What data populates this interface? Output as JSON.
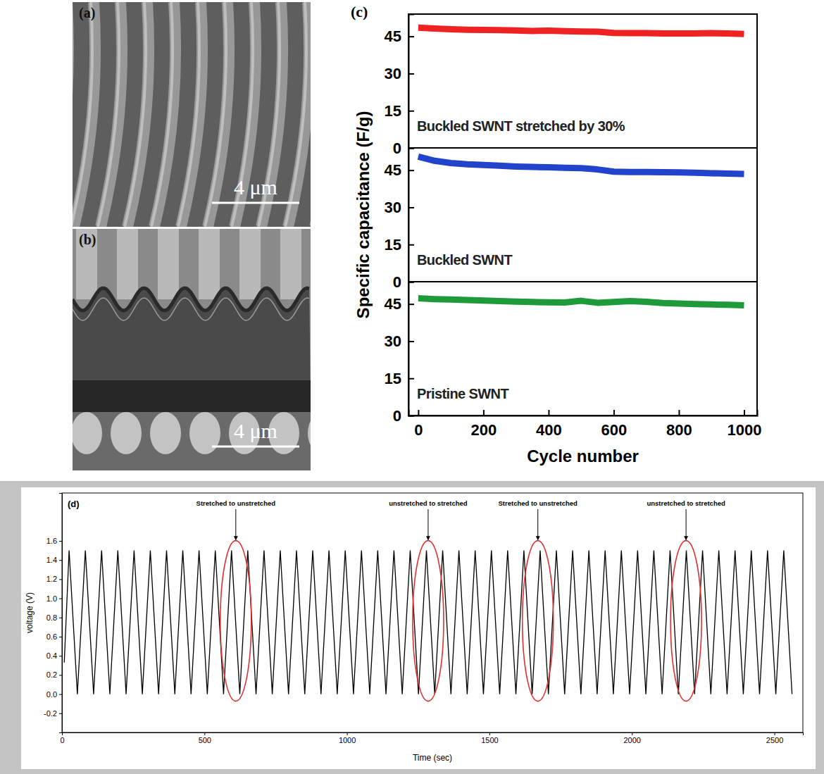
{
  "images": [
    {
      "label": "(a)",
      "scale_bar": "4 μm"
    },
    {
      "label": "(b)",
      "scale_bar": "4 μm"
    }
  ],
  "chart_data": [
    {
      "type": "line",
      "panel_label": "(c)",
      "ylabel": "Specific capacitance (F/g)",
      "xlabel": "Cycle number",
      "x": [
        0,
        50,
        100,
        150,
        200,
        250,
        300,
        350,
        400,
        450,
        500,
        550,
        600,
        650,
        700,
        750,
        800,
        850,
        900,
        950,
        1000
      ],
      "series": [
        {
          "name": "Buckled SWNT stretched by 30%",
          "color": "#ee2222",
          "line_style": "solid",
          "values": [
            48.5,
            48.2,
            47.9,
            47.7,
            47.6,
            47.5,
            47.4,
            47.2,
            47.3,
            47.1,
            47.0,
            46.9,
            46.4,
            46.3,
            46.3,
            46.2,
            46.2,
            46.2,
            46.3,
            46.2,
            46.0
          ]
        },
        {
          "name": "Buckled SWNT",
          "color": "#2244cc",
          "line_style": "solid",
          "values": [
            50.5,
            48.8,
            47.9,
            47.4,
            47.1,
            46.8,
            46.5,
            46.3,
            46.2,
            46.0,
            45.8,
            45.3,
            44.4,
            44.3,
            44.3,
            44.2,
            44.1,
            44.0,
            43.8,
            43.6,
            43.5
          ]
        },
        {
          "name": "Pristine SWNT",
          "color": "#1e9a3a",
          "line_style": "solid",
          "values": [
            47.3,
            47.0,
            46.8,
            46.6,
            46.4,
            46.2,
            46.0,
            45.8,
            45.7,
            45.6,
            46.3,
            45.5,
            45.8,
            46.2,
            45.9,
            45.4,
            45.2,
            45.0,
            44.8,
            44.7,
            44.5
          ]
        }
      ],
      "xlim": [
        -30,
        1040
      ],
      "xticks": [
        0,
        200,
        400,
        600,
        800,
        1000
      ],
      "ylim": [
        0,
        54
      ],
      "yticks": [
        0,
        15,
        30,
        45
      ]
    },
    {
      "type": "line",
      "panel_label": "(d)",
      "ylabel": "voltage (V)",
      "xlabel": "Time (sec)",
      "color": "#000000",
      "line_style": "solid",
      "x": [
        8,
        25,
        54,
        82,
        111,
        139,
        168,
        196,
        225,
        253,
        282,
        310,
        339,
        367,
        396,
        424,
        453,
        481,
        510,
        538,
        567,
        595,
        624,
        652,
        681,
        709,
        738,
        766,
        795,
        823,
        852,
        880,
        909,
        937,
        966,
        994,
        1023,
        1051,
        1080,
        1108,
        1137,
        1165,
        1194,
        1222,
        1251,
        1279,
        1308,
        1336,
        1365,
        1393,
        1422,
        1450,
        1479,
        1507,
        1536,
        1564,
        1593,
        1621,
        1650,
        1678,
        1707,
        1735,
        1764,
        1792,
        1821,
        1849,
        1878,
        1906,
        1935,
        1963,
        1992,
        2020,
        2049,
        2077,
        2106,
        2134,
        2163,
        2191,
        2220,
        2248,
        2277,
        2305,
        2334,
        2362,
        2391,
        2419,
        2448,
        2476,
        2505,
        2533,
        2562
      ],
      "values": [
        0.33,
        1.5,
        0,
        1.5,
        0,
        1.5,
        0,
        1.5,
        0,
        1.5,
        0,
        1.5,
        0,
        1.5,
        0,
        1.5,
        0,
        1.5,
        0,
        1.5,
        0,
        1.5,
        0,
        1.5,
        0,
        1.5,
        0,
        1.5,
        0,
        1.5,
        0,
        1.5,
        0,
        1.5,
        0,
        1.5,
        0,
        1.5,
        0,
        1.5,
        0,
        1.5,
        0,
        1.5,
        0,
        1.5,
        0,
        1.5,
        0,
        1.5,
        0,
        1.5,
        0,
        1.5,
        0,
        1.5,
        0,
        1.5,
        0,
        1.5,
        0,
        1.5,
        0,
        1.5,
        0,
        1.5,
        0,
        1.5,
        0,
        1.5,
        0,
        1.5,
        0,
        1.5,
        0,
        1.5,
        0,
        1.5,
        0,
        1.5,
        0,
        1.5,
        0,
        1.5,
        0,
        1.5,
        0,
        1.5,
        0,
        1.5,
        0
      ],
      "annotations": [
        {
          "text": "Stretched to unstretched",
          "x": 610
        },
        {
          "text": "unstretched to stretched",
          "x": 1285
        },
        {
          "text": "Stretched to unstretched",
          "x": 1670
        },
        {
          "text": "unstretched to stretched",
          "x": 2190
        }
      ],
      "xlim": [
        0,
        2600
      ],
      "xticks": [
        0,
        500,
        1000,
        1500,
        2000,
        2500
      ],
      "ylim": [
        -0.4,
        2.1
      ],
      "yticks": [
        -0.2,
        {
          "value": 0,
          "label": "0.0"
        },
        0.2,
        0.4,
        0.6,
        0.8,
        {
          "value": 1,
          "label": "1.0"
        },
        1.2,
        1.4,
        1.6
      ]
    }
  ]
}
